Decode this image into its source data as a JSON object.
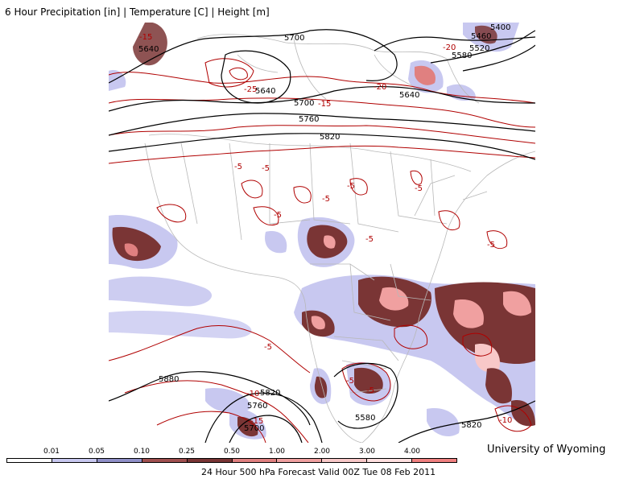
{
  "header": {
    "title": "6 Hour Precipitation [in] | Temperature [C] | Height [m]"
  },
  "footer": {
    "credit": "University of Wyoming",
    "valid_text": "24 Hour 500 hPa Forecast Valid 00Z Tue 08 Feb 2011"
  },
  "legend": {
    "ticks": [
      "0.01",
      "0.05",
      "0.10",
      "0.25",
      "0.50",
      "1.00",
      "2.00",
      "3.00",
      "4.00"
    ],
    "colors": [
      "#ffffff",
      "#c8c8f0",
      "#9090c8",
      "#a05050",
      "#7a3535",
      "#e08080",
      "#f0a0a0",
      "#f8c8c8",
      "#ffe0e0",
      "#f08080"
    ]
  },
  "height_labels": [
    "5700",
    "5640",
    "5640",
    "5700",
    "5760",
    "5820",
    "5640",
    "5400",
    "5460",
    "5520",
    "5580",
    "5880",
    "5820",
    "5760",
    "5700",
    "5580",
    "5820"
  ],
  "temperature_labels": [
    "-15",
    "-25",
    "-15",
    "-20",
    "-20",
    "-5",
    "-5",
    "-5",
    "-5",
    "-5",
    "-5",
    "-5",
    "-5",
    "-5",
    "-5",
    "-5",
    "-10",
    "-15",
    "-10"
  ]
}
